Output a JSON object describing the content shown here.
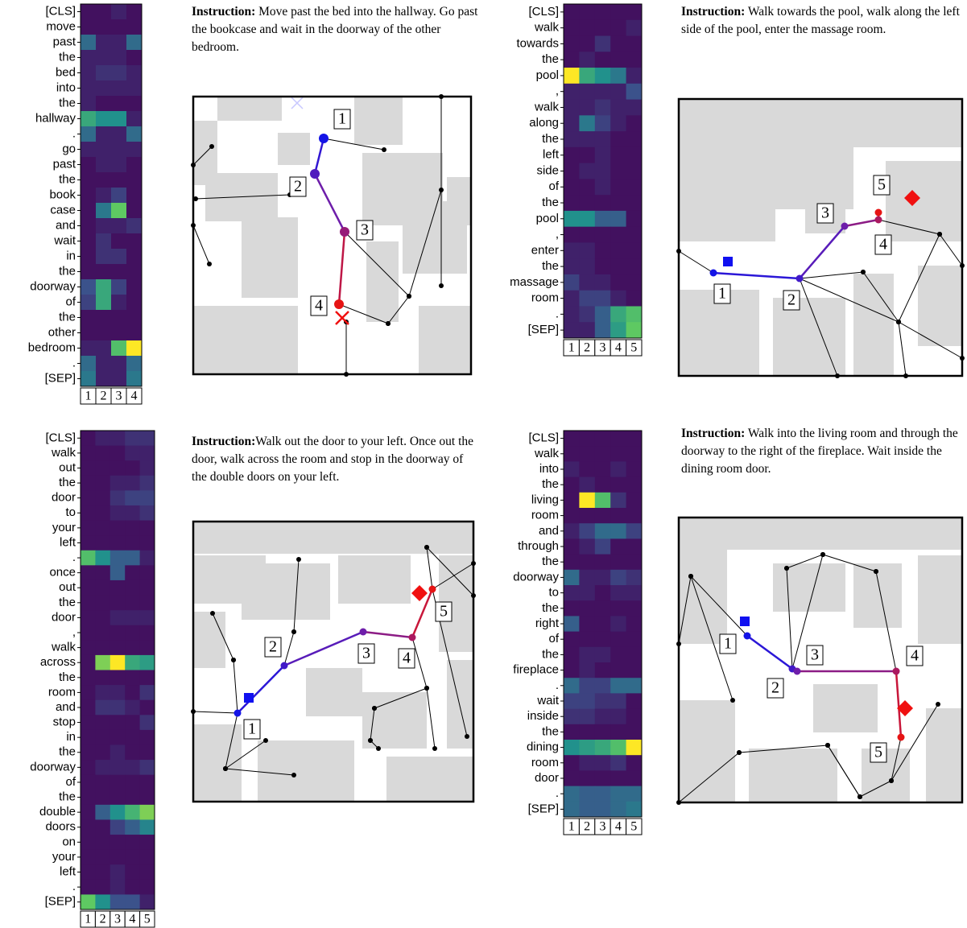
{
  "panels": [
    {
      "instruction_label": "Instruction:",
      "instruction": "Move past the bed into the hallway. Go past the bookcase and wait in the doorway of the other bedroom.",
      "tokens": [
        "[CLS]",
        "move",
        "past",
        "the",
        "bed",
        "into",
        "the",
        "hallway",
        ".",
        "go",
        "past",
        "the",
        "book",
        "case",
        "and",
        "wait",
        "in",
        "the",
        "doorway",
        "of",
        "the",
        "other",
        "bedroom",
        ".",
        "[SEP]"
      ],
      "steps": [
        "1",
        "2",
        "3",
        "4"
      ],
      "attention": [
        [
          0.05,
          0.05,
          0.1,
          0.05
        ],
        [
          0.05,
          0.05,
          0.05,
          0.05
        ],
        [
          0.35,
          0.1,
          0.1,
          0.35
        ],
        [
          0.1,
          0.1,
          0.1,
          0.05
        ],
        [
          0.1,
          0.15,
          0.15,
          0.1
        ],
        [
          0.1,
          0.1,
          0.1,
          0.1
        ],
        [
          0.1,
          0.05,
          0.05,
          0.05
        ],
        [
          0.6,
          0.5,
          0.5,
          0.1
        ],
        [
          0.35,
          0.1,
          0.1,
          0.35
        ],
        [
          0.1,
          0.1,
          0.1,
          0.1
        ],
        [
          0.05,
          0.1,
          0.1,
          0.05
        ],
        [
          0.05,
          0.05,
          0.05,
          0.05
        ],
        [
          0.05,
          0.1,
          0.2,
          0.05
        ],
        [
          0.05,
          0.4,
          0.75,
          0.05
        ],
        [
          0.05,
          0.1,
          0.1,
          0.15
        ],
        [
          0.05,
          0.15,
          0.05,
          0.05
        ],
        [
          0.05,
          0.15,
          0.15,
          0.05
        ],
        [
          0.05,
          0.05,
          0.05,
          0.05
        ],
        [
          0.25,
          0.6,
          0.2,
          0.05
        ],
        [
          0.2,
          0.6,
          0.1,
          0.05
        ],
        [
          0.05,
          0.05,
          0.05,
          0.05
        ],
        [
          0.05,
          0.05,
          0.05,
          0.05
        ],
        [
          0.1,
          0.1,
          0.7,
          1.0
        ],
        [
          0.35,
          0.1,
          0.1,
          0.35
        ],
        [
          0.4,
          0.1,
          0.1,
          0.4
        ]
      ],
      "map_labels": [
        "1",
        "2",
        "3",
        "4"
      ]
    },
    {
      "instruction_label": "Instruction:",
      "instruction": "Walk towards the pool, walk along the left side of the pool, enter the massage room.",
      "tokens": [
        "[CLS]",
        "walk",
        "towards",
        "the",
        "pool",
        ",",
        "walk",
        "along",
        "the",
        "left",
        "side",
        "of",
        "the",
        "pool",
        ",",
        "enter",
        "the",
        "massage",
        "room",
        ".",
        "[SEP]"
      ],
      "steps": [
        "1",
        "2",
        "3",
        "4",
        "5"
      ],
      "attention": [
        [
          0.05,
          0.05,
          0.05,
          0.05,
          0.05
        ],
        [
          0.05,
          0.05,
          0.05,
          0.05,
          0.1
        ],
        [
          0.05,
          0.05,
          0.15,
          0.05,
          0.05
        ],
        [
          0.05,
          0.1,
          0.05,
          0.05,
          0.05
        ],
        [
          1.0,
          0.6,
          0.5,
          0.4,
          0.1
        ],
        [
          0.1,
          0.1,
          0.1,
          0.1,
          0.25
        ],
        [
          0.1,
          0.1,
          0.15,
          0.1,
          0.1
        ],
        [
          0.1,
          0.4,
          0.2,
          0.1,
          0.05
        ],
        [
          0.1,
          0.1,
          0.1,
          0.05,
          0.05
        ],
        [
          0.05,
          0.05,
          0.1,
          0.05,
          0.05
        ],
        [
          0.05,
          0.1,
          0.1,
          0.05,
          0.05
        ],
        [
          0.05,
          0.05,
          0.1,
          0.05,
          0.05
        ],
        [
          0.05,
          0.05,
          0.05,
          0.05,
          0.05
        ],
        [
          0.5,
          0.5,
          0.3,
          0.3,
          0.05
        ],
        [
          0.05,
          0.05,
          0.05,
          0.05,
          0.05
        ],
        [
          0.1,
          0.1,
          0.05,
          0.05,
          0.05
        ],
        [
          0.1,
          0.1,
          0.05,
          0.05,
          0.05
        ],
        [
          0.2,
          0.1,
          0.1,
          0.05,
          0.05
        ],
        [
          0.1,
          0.2,
          0.2,
          0.1,
          0.05
        ],
        [
          0.1,
          0.15,
          0.3,
          0.6,
          0.7
        ],
        [
          0.1,
          0.1,
          0.3,
          0.55,
          0.75
        ]
      ],
      "map_labels": [
        "1",
        "2",
        "3",
        "4",
        "5"
      ]
    },
    {
      "instruction_label": "Instruction:",
      "instruction": "Walk out the door to your left. Once out the door, walk across the room and stop in the doorway of the double doors on your left.",
      "tokens": [
        "[CLS]",
        "walk",
        "out",
        "the",
        "door",
        "to",
        "your",
        "left",
        ".",
        "once",
        "out",
        "the",
        "door",
        ",",
        "walk",
        "across",
        "the",
        "room",
        "and",
        "stop",
        "in",
        "the",
        "doorway",
        "of",
        "the",
        "double",
        "doors",
        "on",
        "your",
        "left",
        ".",
        "[SEP]"
      ],
      "steps": [
        "1",
        "2",
        "3",
        "4",
        "5"
      ],
      "attention": [
        [
          0.05,
          0.1,
          0.1,
          0.15,
          0.15
        ],
        [
          0.05,
          0.05,
          0.05,
          0.1,
          0.1
        ],
        [
          0.05,
          0.05,
          0.05,
          0.05,
          0.1
        ],
        [
          0.05,
          0.05,
          0.1,
          0.1,
          0.15
        ],
        [
          0.05,
          0.05,
          0.15,
          0.2,
          0.2
        ],
        [
          0.05,
          0.05,
          0.1,
          0.1,
          0.15
        ],
        [
          0.05,
          0.05,
          0.05,
          0.05,
          0.05
        ],
        [
          0.05,
          0.05,
          0.05,
          0.05,
          0.05
        ],
        [
          0.7,
          0.5,
          0.3,
          0.3,
          0.1
        ],
        [
          0.05,
          0.05,
          0.3,
          0.05,
          0.05
        ],
        [
          0.05,
          0.05,
          0.05,
          0.05,
          0.05
        ],
        [
          0.05,
          0.05,
          0.05,
          0.05,
          0.05
        ],
        [
          0.05,
          0.05,
          0.1,
          0.1,
          0.1
        ],
        [
          0.05,
          0.05,
          0.05,
          0.05,
          0.05
        ],
        [
          0.05,
          0.05,
          0.05,
          0.05,
          0.05
        ],
        [
          0.05,
          0.8,
          1.0,
          0.6,
          0.55
        ],
        [
          0.05,
          0.05,
          0.05,
          0.05,
          0.05
        ],
        [
          0.05,
          0.1,
          0.1,
          0.05,
          0.15
        ],
        [
          0.05,
          0.15,
          0.15,
          0.1,
          0.05
        ],
        [
          0.05,
          0.05,
          0.05,
          0.05,
          0.15
        ],
        [
          0.05,
          0.05,
          0.05,
          0.05,
          0.05
        ],
        [
          0.05,
          0.05,
          0.1,
          0.05,
          0.05
        ],
        [
          0.05,
          0.1,
          0.1,
          0.1,
          0.15
        ],
        [
          0.05,
          0.05,
          0.05,
          0.05,
          0.05
        ],
        [
          0.05,
          0.05,
          0.05,
          0.05,
          0.05
        ],
        [
          0.05,
          0.3,
          0.5,
          0.65,
          0.8
        ],
        [
          0.05,
          0.05,
          0.2,
          0.3,
          0.45
        ],
        [
          0.05,
          0.05,
          0.05,
          0.05,
          0.05
        ],
        [
          0.05,
          0.05,
          0.05,
          0.05,
          0.05
        ],
        [
          0.05,
          0.05,
          0.1,
          0.05,
          0.05
        ],
        [
          0.05,
          0.05,
          0.1,
          0.05,
          0.05
        ],
        [
          0.75,
          0.5,
          0.25,
          0.25,
          0.1
        ]
      ],
      "map_labels": [
        "1",
        "2",
        "3",
        "4",
        "5"
      ]
    },
    {
      "instruction_label": "Instruction:",
      "instruction": "Walk into the living room and through the doorway to the right of the fireplace. Wait inside the dining room door.",
      "tokens": [
        "[CLS]",
        "walk",
        "into",
        "the",
        "living",
        "room",
        "and",
        "through",
        "the",
        "doorway",
        "to",
        "the",
        "right",
        "of",
        "the",
        "fireplace",
        ".",
        "wait",
        "inside",
        "the",
        "dining",
        "room",
        "door",
        ".",
        "[SEP]"
      ],
      "steps": [
        "1",
        "2",
        "3",
        "4",
        "5"
      ],
      "attention": [
        [
          0.05,
          0.05,
          0.05,
          0.05,
          0.05
        ],
        [
          0.05,
          0.05,
          0.05,
          0.05,
          0.05
        ],
        [
          0.1,
          0.05,
          0.05,
          0.1,
          0.05
        ],
        [
          0.05,
          0.1,
          0.05,
          0.05,
          0.05
        ],
        [
          0.05,
          1.0,
          0.7,
          0.15,
          0.05
        ],
        [
          0.05,
          0.05,
          0.05,
          0.05,
          0.05
        ],
        [
          0.1,
          0.2,
          0.35,
          0.35,
          0.2
        ],
        [
          0.05,
          0.1,
          0.2,
          0.05,
          0.05
        ],
        [
          0.05,
          0.05,
          0.05,
          0.05,
          0.05
        ],
        [
          0.35,
          0.1,
          0.1,
          0.2,
          0.15
        ],
        [
          0.1,
          0.1,
          0.05,
          0.1,
          0.1
        ],
        [
          0.05,
          0.05,
          0.05,
          0.05,
          0.05
        ],
        [
          0.3,
          0.05,
          0.05,
          0.1,
          0.05
        ],
        [
          0.05,
          0.05,
          0.05,
          0.05,
          0.05
        ],
        [
          0.05,
          0.1,
          0.1,
          0.05,
          0.05
        ],
        [
          0.05,
          0.1,
          0.05,
          0.05,
          0.05
        ],
        [
          0.35,
          0.2,
          0.2,
          0.35,
          0.35
        ],
        [
          0.2,
          0.2,
          0.15,
          0.15,
          0.05
        ],
        [
          0.15,
          0.15,
          0.1,
          0.1,
          0.05
        ],
        [
          0.05,
          0.05,
          0.05,
          0.05,
          0.05
        ],
        [
          0.5,
          0.55,
          0.6,
          0.7,
          1.0
        ],
        [
          0.05,
          0.1,
          0.1,
          0.15,
          0.05
        ],
        [
          0.05,
          0.05,
          0.05,
          0.05,
          0.05
        ],
        [
          0.35,
          0.3,
          0.3,
          0.35,
          0.35
        ],
        [
          0.35,
          0.3,
          0.3,
          0.35,
          0.4
        ]
      ],
      "map_labels": [
        "1",
        "2",
        "3",
        "4",
        "5"
      ]
    }
  ]
}
